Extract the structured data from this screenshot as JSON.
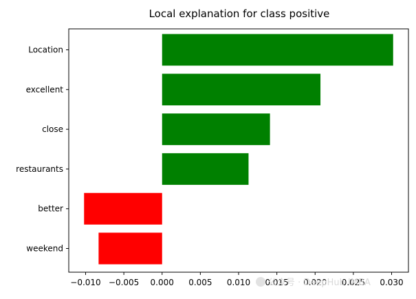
{
  "chart_data": {
    "type": "bar",
    "orientation": "horizontal",
    "title": "Local explanation for class positive",
    "categories": [
      "Location",
      "excellent",
      "close",
      "restaurants",
      "better",
      "weekend"
    ],
    "values": [
      0.0302,
      0.0207,
      0.0141,
      0.0113,
      -0.0102,
      -0.0083
    ],
    "xlim": [
      -0.0122,
      0.0322
    ],
    "xticks": [
      -0.01,
      -0.005,
      0.0,
      0.005,
      0.01,
      0.015,
      0.02,
      0.025,
      0.03
    ],
    "xtick_labels": [
      "−0.010",
      "−0.005",
      "0.000",
      "0.005",
      "0.010",
      "0.015",
      "0.020",
      "0.025",
      "0.030"
    ],
    "positive_color": "#008000",
    "negative_color": "#ff0000",
    "grid": false,
    "xlabel": "",
    "ylabel": ""
  },
  "watermark": {
    "text": "公众号 · DeepHub IMBA"
  }
}
